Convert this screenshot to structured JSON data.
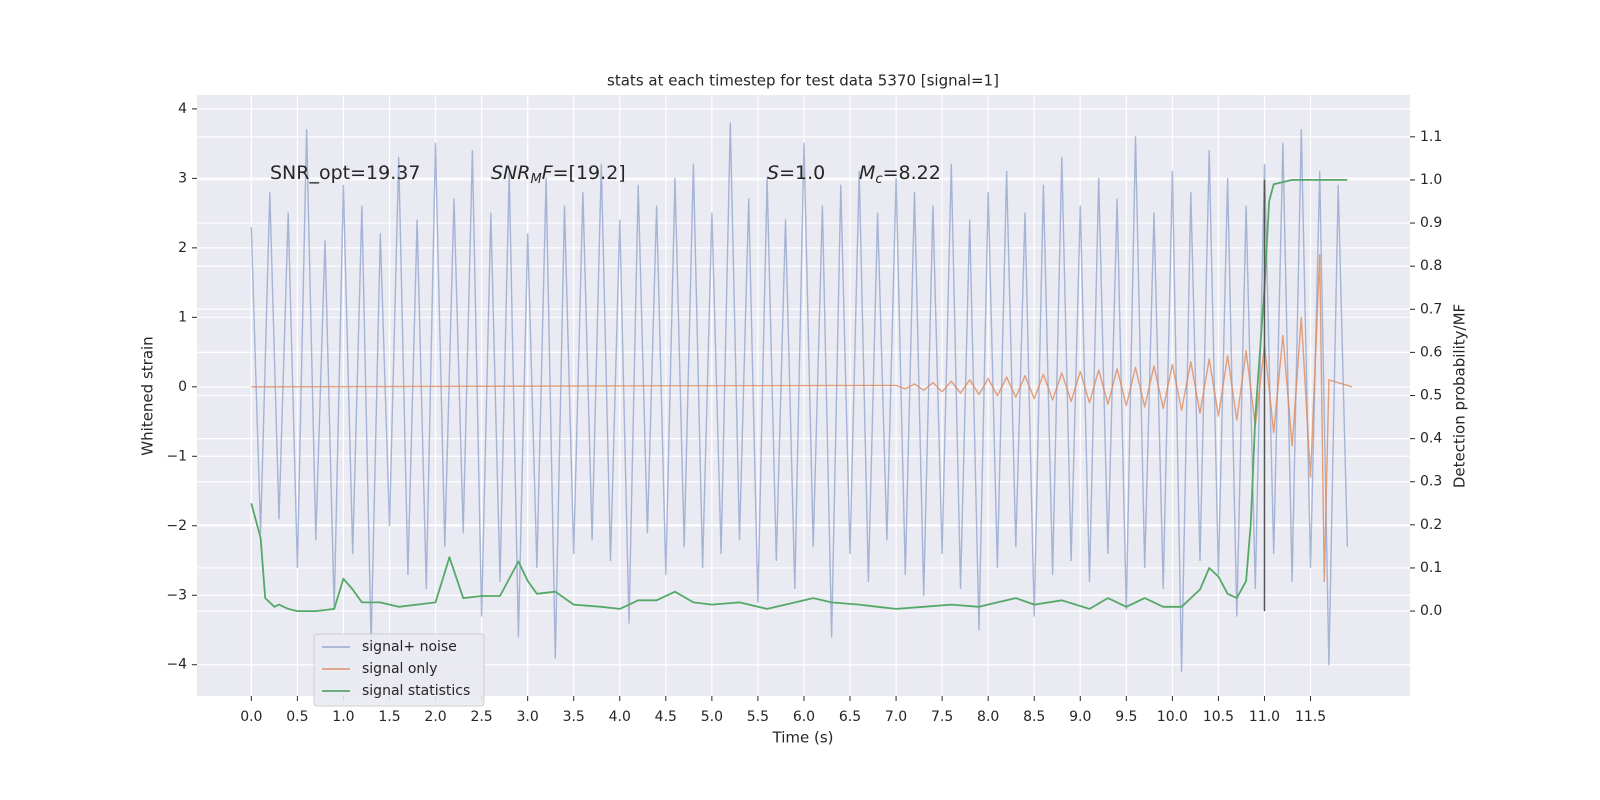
{
  "chart_data": {
    "type": "line",
    "title": "stats at each timestep for test data 5370 [signal=1]",
    "xlabel": "Time (s)",
    "ylabel": "Whitened strain",
    "y2label": "Detection probability/MF",
    "xlim": [
      -0.59,
      12.58
    ],
    "ylim": [
      -4.45,
      4.2
    ],
    "y2lim": [
      -0.197,
      1.197
    ],
    "xticks": [
      {
        "value": 0,
        "label": "0.0"
      },
      0.5,
      {
        "value": 1,
        "label": "1.0"
      },
      1.5,
      {
        "value": 2,
        "label": "2.0"
      },
      2.5,
      {
        "value": 3,
        "label": "3.0"
      },
      3.5,
      {
        "value": 4,
        "label": "4.0"
      },
      4.5,
      {
        "value": 5,
        "label": "5.0"
      },
      5.5,
      {
        "value": 6,
        "label": "6.0"
      },
      6.5,
      {
        "value": 7,
        "label": "7.0"
      },
      7.5,
      {
        "value": 8,
        "label": "8.0"
      },
      8.5,
      {
        "value": 9,
        "label": "9.0"
      },
      9.5,
      {
        "value": 10,
        "label": "10.0"
      },
      10.5,
      {
        "value": 11,
        "label": "11.0"
      },
      11.5
    ],
    "yticks": [
      {
        "value": -4,
        "label": "−4"
      },
      {
        "value": -3,
        "label": "−3"
      },
      {
        "value": -2,
        "label": "−2"
      },
      {
        "value": -1,
        "label": "−1"
      },
      0,
      1,
      2,
      3,
      4
    ],
    "y2ticks": [
      {
        "value": 0,
        "label": "0.0"
      },
      0.1,
      0.2,
      0.3,
      0.4,
      0.5,
      0.6,
      0.7,
      0.8,
      0.9,
      {
        "value": 1,
        "label": "1.0"
      },
      1.1
    ],
    "grid": true,
    "legend": "lower left",
    "series": [
      {
        "name": "signal+ noise",
        "color": "#8da0cb",
        "x": [
          0.0,
          0.1,
          0.2,
          0.3,
          0.4,
          0.5,
          0.6,
          0.7,
          0.8,
          0.9,
          1.0,
          1.1,
          1.2,
          1.3,
          1.4,
          1.5,
          1.6,
          1.7,
          1.8,
          1.9,
          2.0,
          2.1,
          2.2,
          2.3,
          2.4,
          2.5,
          2.6,
          2.7,
          2.8,
          2.9,
          3.0,
          3.1,
          3.2,
          3.3,
          3.4,
          3.5,
          3.6,
          3.7,
          3.8,
          3.9,
          4.0,
          4.1,
          4.2,
          4.3,
          4.4,
          4.5,
          4.6,
          4.7,
          4.8,
          4.9,
          5.0,
          5.1,
          5.2,
          5.3,
          5.4,
          5.5,
          5.6,
          5.7,
          5.8,
          5.9,
          6.0,
          6.1,
          6.2,
          6.3,
          6.4,
          6.5,
          6.6,
          6.7,
          6.8,
          6.9,
          7.0,
          7.1,
          7.2,
          7.3,
          7.4,
          7.5,
          7.6,
          7.7,
          7.8,
          7.9,
          8.0,
          8.1,
          8.2,
          8.3,
          8.4,
          8.5,
          8.6,
          8.7,
          8.8,
          8.9,
          9.0,
          9.1,
          9.2,
          9.3,
          9.4,
          9.5,
          9.6,
          9.7,
          9.8,
          9.9,
          10.0,
          10.1,
          10.2,
          10.3,
          10.4,
          10.5,
          10.6,
          10.7,
          10.8,
          10.9,
          11.0,
          11.1,
          11.2,
          11.3,
          11.4,
          11.5,
          11.6,
          11.7,
          11.8,
          11.9
        ],
        "values": [
          2.3,
          -2.1,
          2.8,
          -1.9,
          2.5,
          -2.6,
          3.7,
          -2.2,
          2.1,
          -3.2,
          2.9,
          -2.4,
          2.6,
          -3.7,
          2.2,
          -2.0,
          3.3,
          -2.7,
          2.4,
          -2.9,
          3.5,
          -2.3,
          2.7,
          -2.1,
          3.4,
          -3.3,
          2.5,
          -2.8,
          3.1,
          -3.6,
          2.2,
          -2.6,
          3.0,
          -3.9,
          2.6,
          -2.4,
          2.8,
          -2.2,
          3.2,
          -2.5,
          2.4,
          -3.4,
          2.9,
          -2.1,
          2.6,
          -2.7,
          3.0,
          -2.3,
          3.2,
          -2.6,
          2.5,
          -2.4,
          3.8,
          -2.2,
          2.7,
          -3.1,
          3.0,
          -2.5,
          2.4,
          -2.9,
          3.5,
          -2.3,
          2.6,
          -3.6,
          2.9,
          -2.4,
          3.1,
          -2.8,
          2.5,
          -2.2,
          3.0,
          -2.7,
          2.8,
          -3.0,
          2.6,
          -2.4,
          3.2,
          -2.9,
          2.4,
          -3.5,
          2.8,
          -2.6,
          3.1,
          -2.3,
          2.5,
          -3.3,
          2.9,
          -2.7,
          3.3,
          -2.5,
          2.6,
          -2.8,
          3.0,
          -2.4,
          2.7,
          -3.2,
          3.6,
          -2.6,
          2.5,
          -2.9,
          3.1,
          -4.1,
          2.8,
          -2.5,
          3.4,
          -2.7,
          3.0,
          -3.3,
          2.6,
          -2.9,
          3.2,
          -2.4,
          3.5,
          -2.8,
          3.7,
          -2.6,
          3.1,
          -4.0,
          2.9,
          -2.3
        ]
      },
      {
        "name": "signal only",
        "color": "#dd8452",
        "x": [
          0.0,
          7.0,
          7.1,
          7.2,
          7.3,
          7.4,
          7.5,
          7.6,
          7.7,
          7.8,
          7.9,
          8.0,
          8.1,
          8.2,
          8.3,
          8.4,
          8.5,
          8.6,
          8.7,
          8.8,
          8.9,
          9.0,
          9.1,
          9.2,
          9.3,
          9.4,
          9.5,
          9.6,
          9.7,
          9.8,
          9.9,
          10.0,
          10.1,
          10.2,
          10.3,
          10.4,
          10.5,
          10.6,
          10.7,
          10.8,
          10.9,
          11.0,
          11.1,
          11.2,
          11.3,
          11.4,
          11.5,
          11.6,
          11.65,
          11.7,
          11.95
        ],
        "values": [
          0.0,
          0.02,
          -0.03,
          0.04,
          -0.05,
          0.06,
          -0.07,
          0.08,
          -0.09,
          0.1,
          -0.11,
          0.12,
          -0.13,
          0.14,
          -0.15,
          0.16,
          -0.17,
          0.18,
          -0.19,
          0.2,
          -0.21,
          0.22,
          -0.23,
          0.24,
          -0.25,
          0.26,
          -0.27,
          0.28,
          -0.29,
          0.3,
          -0.31,
          0.32,
          -0.34,
          0.36,
          -0.38,
          0.4,
          -0.42,
          0.45,
          -0.48,
          0.52,
          -0.56,
          0.6,
          -0.66,
          0.74,
          -0.85,
          1.0,
          -1.3,
          1.9,
          -2.8,
          0.1,
          0.0
        ]
      },
      {
        "name": "signal statistics",
        "color": "#55a868",
        "axis": "y2",
        "x": [
          0.0,
          0.1,
          0.15,
          0.25,
          0.3,
          0.4,
          0.5,
          0.7,
          0.9,
          1.0,
          1.1,
          1.2,
          1.4,
          1.6,
          1.8,
          2.0,
          2.1,
          2.15,
          2.3,
          2.5,
          2.7,
          2.9,
          3.0,
          3.1,
          3.3,
          3.5,
          3.8,
          4.0,
          4.2,
          4.4,
          4.6,
          4.8,
          5.0,
          5.3,
          5.6,
          5.8,
          6.1,
          6.3,
          6.6,
          6.8,
          7.0,
          7.3,
          7.6,
          7.9,
          8.1,
          8.3,
          8.5,
          8.8,
          9.1,
          9.3,
          9.5,
          9.7,
          9.9,
          10.1,
          10.3,
          10.4,
          10.5,
          10.6,
          10.7,
          10.8,
          10.85,
          10.9,
          11.0,
          11.05,
          11.1,
          11.3,
          11.9
        ],
        "values": [
          0.25,
          0.17,
          0.03,
          0.01,
          0.015,
          0.005,
          0.0,
          0.0,
          0.005,
          0.075,
          0.05,
          0.02,
          0.02,
          0.01,
          0.015,
          0.02,
          0.09,
          0.125,
          0.03,
          0.035,
          0.035,
          0.115,
          0.07,
          0.04,
          0.045,
          0.015,
          0.01,
          0.005,
          0.025,
          0.025,
          0.045,
          0.02,
          0.015,
          0.02,
          0.005,
          0.015,
          0.03,
          0.02,
          0.015,
          0.01,
          0.005,
          0.01,
          0.015,
          0.01,
          0.02,
          0.03,
          0.015,
          0.025,
          0.005,
          0.03,
          0.01,
          0.03,
          0.01,
          0.01,
          0.05,
          0.1,
          0.08,
          0.04,
          0.03,
          0.07,
          0.2,
          0.45,
          0.75,
          0.95,
          0.99,
          1.0,
          1.0
        ]
      }
    ],
    "vline": {
      "x": 11.0,
      "ymin": 0,
      "ymax": 1,
      "color": "#555555",
      "axis": "y2"
    },
    "annotations": [
      {
        "parts": [
          {
            "text": "SNR_opt=19.37",
            "style": "normal"
          }
        ]
      },
      {
        "parts": [
          {
            "text": "SNR",
            "style": "italic"
          },
          {
            "text": "M",
            "style": "sub"
          },
          {
            "text": "F",
            "style": "italic"
          },
          {
            "text": "=[19.2]",
            "style": "normal"
          }
        ]
      },
      {
        "parts": [
          {
            "text": "S",
            "style": "italic"
          },
          {
            "text": "=1.0",
            "style": "normal"
          }
        ]
      },
      {
        "parts": [
          {
            "text": "M",
            "style": "italic"
          },
          {
            "text": "c",
            "style": "sub"
          },
          {
            "text": "=8.22",
            "style": "normal"
          }
        ]
      }
    ]
  }
}
